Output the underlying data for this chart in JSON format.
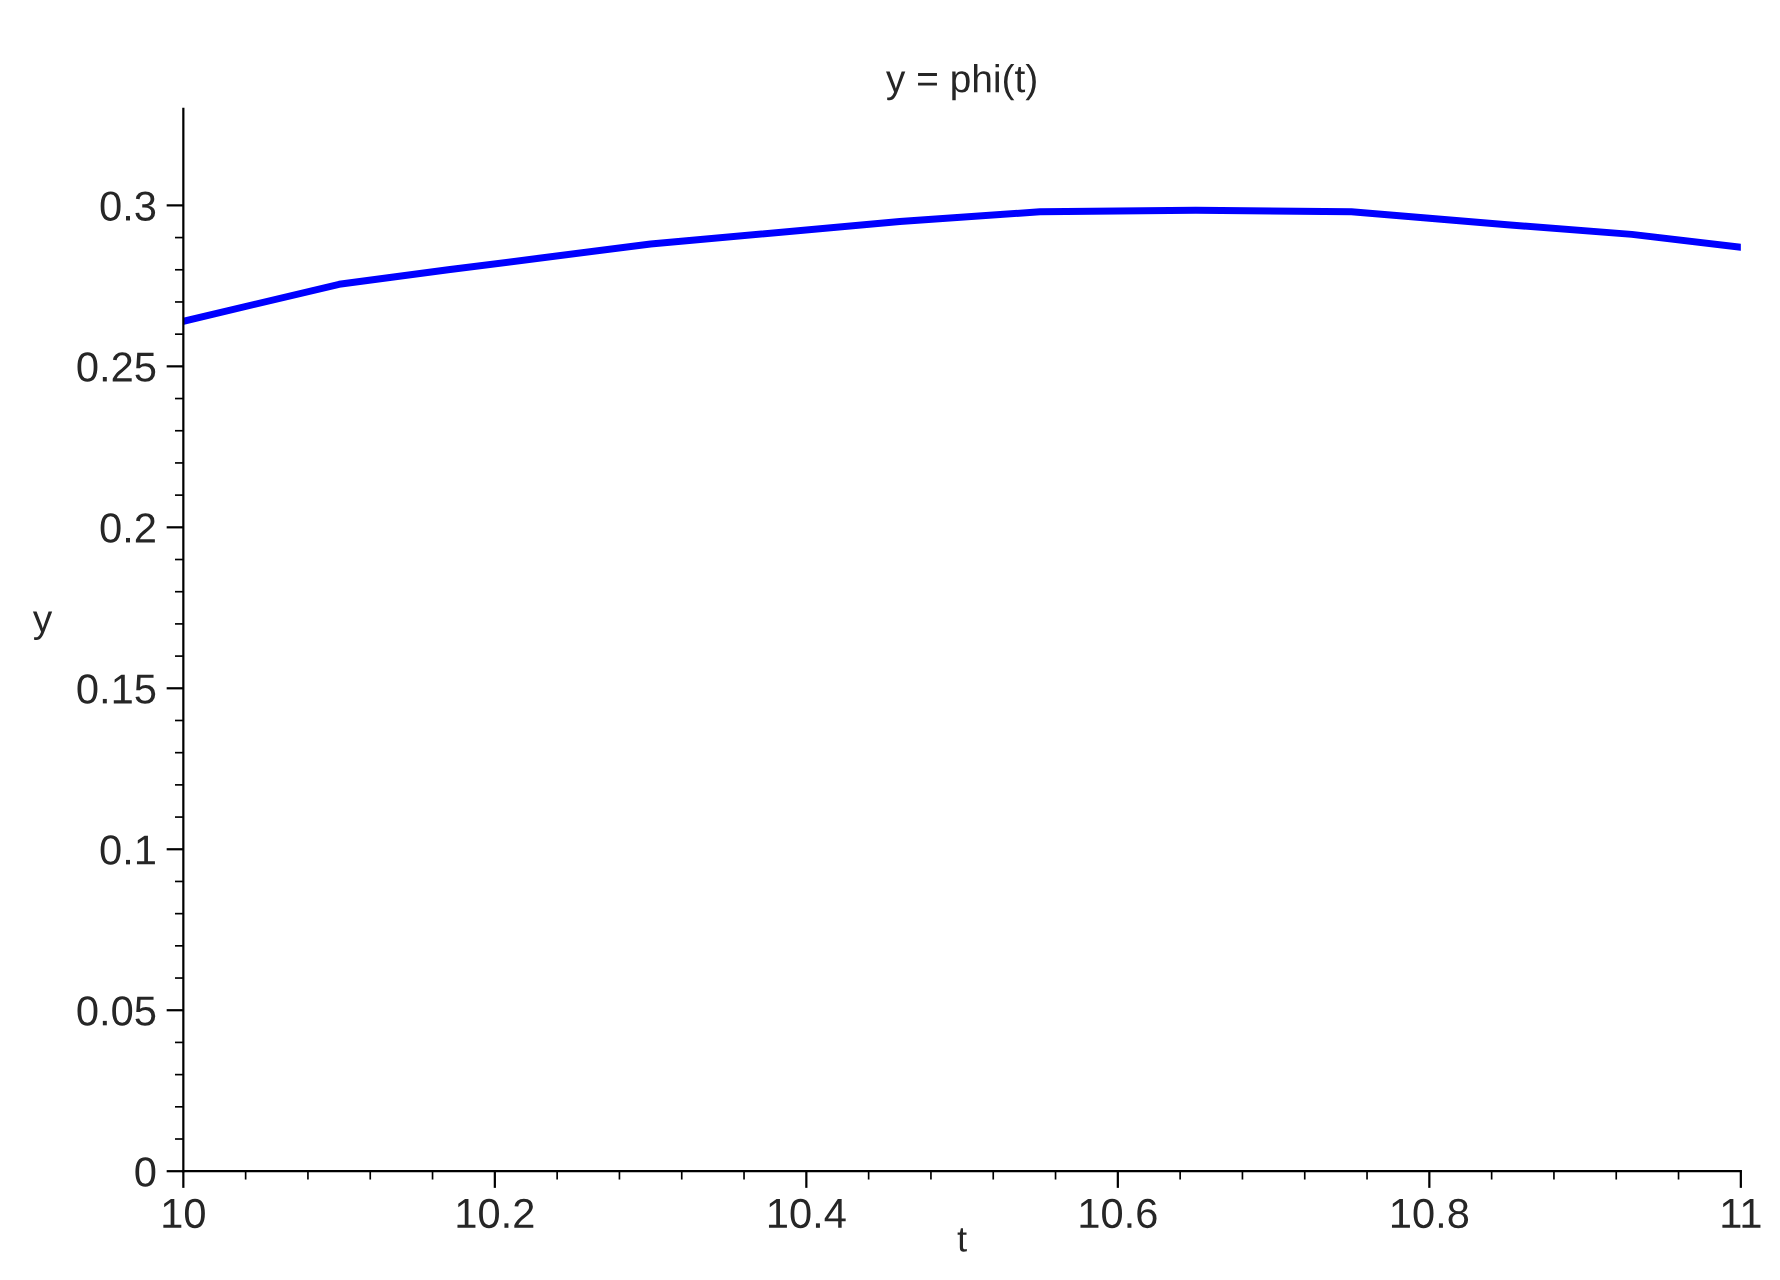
{
  "chart_data": {
    "type": "line",
    "title": "y = phi(t)",
    "xlabel": "t",
    "ylabel": "y",
    "x": [
      10.0,
      10.1,
      10.17,
      10.3,
      10.46,
      10.55,
      10.65,
      10.75,
      10.85,
      10.93,
      11.0
    ],
    "series": [
      {
        "color": "#0000ff",
        "values": [
          0.264,
          0.2755,
          0.28,
          0.288,
          0.295,
          0.298,
          0.2985,
          0.298,
          0.294,
          0.291,
          0.287
        ]
      }
    ],
    "xlim": [
      10,
      11
    ],
    "ylim": [
      0,
      0.33
    ],
    "xticks": [
      10,
      10.2,
      10.4,
      10.6,
      10.8,
      11
    ],
    "yticks": [
      0,
      0.05,
      0.1,
      0.15,
      0.2,
      0.25,
      0.3
    ],
    "grid": false,
    "legend": false,
    "marker": "none",
    "line_style": "solid"
  }
}
